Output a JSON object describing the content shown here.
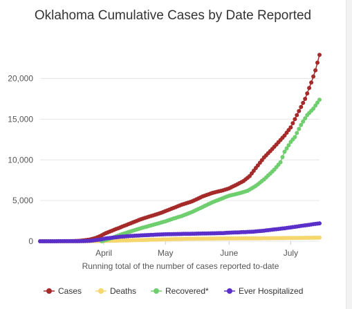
{
  "chart_data": {
    "type": "line",
    "title": "Oklahoma Cumulative Cases by Date Reported",
    "xlabel": "Running total of the number of cases reported to-date",
    "ylabel": "",
    "x_ticks": [
      {
        "label": "April",
        "day": 32
      },
      {
        "label": "May",
        "day": 62
      },
      {
        "label": "June",
        "day": 93
      },
      {
        "label": "July",
        "day": 123
      }
    ],
    "y_ticks": [
      0,
      5000,
      10000,
      15000,
      20000
    ],
    "y_tick_labels": [
      "0",
      "5,000",
      "10,000",
      "15,000",
      "20,000"
    ],
    "xlim": [
      1,
      137
    ],
    "ylim": [
      0,
      22000
    ],
    "grid": true,
    "legend_position": "bottom",
    "series": [
      {
        "name": "Cases",
        "color": "#a52a2a",
        "points": [
          [
            1,
            0
          ],
          [
            10,
            0
          ],
          [
            15,
            10
          ],
          [
            20,
            50
          ],
          [
            25,
            200
          ],
          [
            28,
            400
          ],
          [
            30,
            600
          ],
          [
            33,
            1000
          ],
          [
            36,
            1300
          ],
          [
            40,
            1700
          ],
          [
            45,
            2200
          ],
          [
            50,
            2700
          ],
          [
            55,
            3100
          ],
          [
            60,
            3500
          ],
          [
            62,
            3700
          ],
          [
            66,
            4100
          ],
          [
            70,
            4500
          ],
          [
            75,
            4900
          ],
          [
            80,
            5500
          ],
          [
            85,
            5950
          ],
          [
            90,
            6250
          ],
          [
            93,
            6500
          ],
          [
            97,
            7000
          ],
          [
            100,
            7400
          ],
          [
            103,
            8000
          ],
          [
            106,
            9000
          ],
          [
            110,
            10300
          ],
          [
            115,
            11600
          ],
          [
            120,
            13000
          ],
          [
            123,
            14000
          ],
          [
            126,
            15500
          ],
          [
            130,
            17500
          ],
          [
            133,
            19500
          ],
          [
            135,
            21000
          ],
          [
            137,
            22900
          ]
        ]
      },
      {
        "name": "Deaths",
        "color": "#f5d76e",
        "points": [
          [
            1,
            0
          ],
          [
            20,
            2
          ],
          [
            30,
            20
          ],
          [
            40,
            90
          ],
          [
            50,
            150
          ],
          [
            60,
            220
          ],
          [
            70,
            290
          ],
          [
            80,
            320
          ],
          [
            93,
            350
          ],
          [
            105,
            360
          ],
          [
            115,
            380
          ],
          [
            123,
            400
          ],
          [
            130,
            420
          ],
          [
            137,
            440
          ]
        ]
      },
      {
        "name": "Recovered*",
        "color": "#6fcf6f",
        "points": [
          [
            31,
            0
          ],
          [
            33,
            150
          ],
          [
            36,
            400
          ],
          [
            40,
            800
          ],
          [
            45,
            1200
          ],
          [
            50,
            1600
          ],
          [
            55,
            1950
          ],
          [
            60,
            2300
          ],
          [
            62,
            2450
          ],
          [
            66,
            2800
          ],
          [
            70,
            3100
          ],
          [
            75,
            3600
          ],
          [
            80,
            4200
          ],
          [
            85,
            4800
          ],
          [
            90,
            5300
          ],
          [
            93,
            5600
          ],
          [
            98,
            5900
          ],
          [
            102,
            6200
          ],
          [
            106,
            6800
          ],
          [
            110,
            7600
          ],
          [
            115,
            8800
          ],
          [
            118,
            9700
          ],
          [
            120,
            11000
          ],
          [
            123,
            12200
          ],
          [
            125,
            12800
          ],
          [
            128,
            14300
          ],
          [
            131,
            15500
          ],
          [
            134,
            16300
          ],
          [
            137,
            17400
          ]
        ]
      },
      {
        "name": "Ever Hospitalized",
        "color": "#5b2fc9",
        "points": [
          [
            1,
            0
          ],
          [
            20,
            10
          ],
          [
            25,
            50
          ],
          [
            30,
            200
          ],
          [
            33,
            350
          ],
          [
            40,
            550
          ],
          [
            45,
            650
          ],
          [
            50,
            720
          ],
          [
            55,
            780
          ],
          [
            60,
            840
          ],
          [
            62,
            860
          ],
          [
            70,
            900
          ],
          [
            80,
            950
          ],
          [
            90,
            1000
          ],
          [
            93,
            1050
          ],
          [
            100,
            1120
          ],
          [
            105,
            1180
          ],
          [
            110,
            1300
          ],
          [
            115,
            1450
          ],
          [
            120,
            1600
          ],
          [
            123,
            1700
          ],
          [
            127,
            1850
          ],
          [
            130,
            1950
          ],
          [
            134,
            2100
          ],
          [
            137,
            2200
          ]
        ]
      }
    ]
  }
}
